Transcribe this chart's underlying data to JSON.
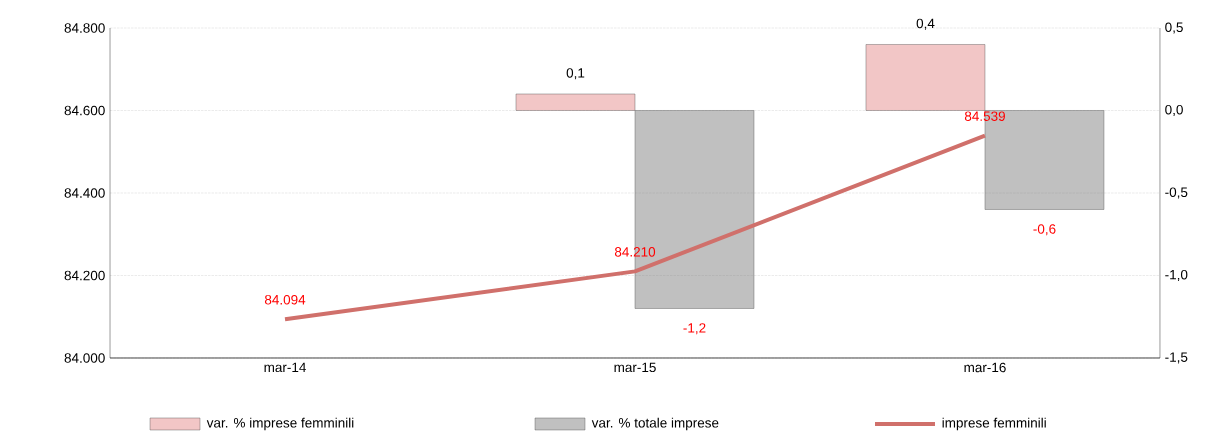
{
  "chart_data": {
    "type": "bar",
    "categories": [
      "mar-14",
      "mar-15",
      "mar-16"
    ],
    "series": [
      {
        "name": "var. % imprese femminili",
        "axis": "y2",
        "color": "#f2c6c6",
        "values": [
          null,
          0.1,
          0.4
        ],
        "value_labels": [
          null,
          "0,1",
          "0,4"
        ]
      },
      {
        "name": "var. % totale imprese",
        "axis": "y2",
        "color": "#c0c0c0",
        "values": [
          null,
          -1.2,
          -0.6
        ],
        "value_labels": [
          null,
          "-1,2",
          "-0,6"
        ]
      },
      {
        "name": "imprese femminili",
        "type": "line",
        "color": "#d0706b",
        "values": [
          84094,
          84210,
          84539
        ],
        "value_labels": [
          "84.094",
          "84.210",
          "84.539"
        ]
      }
    ],
    "ylim": [
      84000,
      84800
    ],
    "yticks": [
      {
        "value": 84000,
        "label": "84.000"
      },
      {
        "value": 84200,
        "label": "84.200"
      },
      {
        "value": 84400,
        "label": "84.400"
      },
      {
        "value": 84600,
        "label": "84.600"
      },
      {
        "value": 84800,
        "label": "84.800"
      }
    ],
    "y2lim": [
      -1.5,
      0.5
    ],
    "y2ticks": [
      {
        "value": -1.5,
        "label": "-1,5"
      },
      {
        "value": -1.0,
        "label": "-1,0"
      },
      {
        "value": -0.5,
        "label": "-0,5"
      },
      {
        "value": 0.0,
        "label": "0,0"
      },
      {
        "value": 0.5,
        "label": "0,5"
      }
    ],
    "grid": "y",
    "legend": "bottom"
  }
}
